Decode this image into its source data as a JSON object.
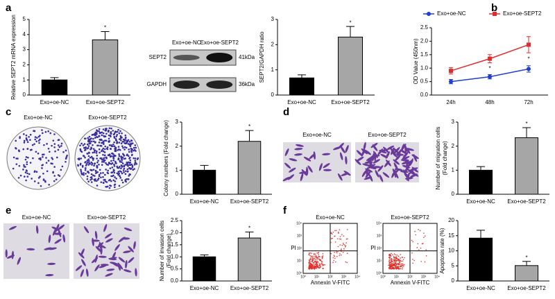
{
  "panel_labels": [
    "a",
    "b",
    "c",
    "d",
    "e",
    "f"
  ],
  "blot": {
    "lanes": [
      "Exo+oe-NC",
      "Exo+oe-SEPT2"
    ],
    "rows": [
      {
        "name": "SEPT2",
        "size": "41kDa"
      },
      {
        "name": "GAPDH",
        "size": "36kDa"
      }
    ]
  },
  "micrographs": [
    {
      "labels": [
        "Exo+oe-NC",
        "Exo+oe-SEPT2"
      ]
    },
    {
      "labels": [
        "Exo+oe-NC",
        "Exo+oe-SEPT2"
      ]
    },
    {
      "labels": [
        "Exo+oe-NC",
        "Exo+oe-SEPT2"
      ]
    }
  ],
  "flow": {
    "labels": [
      "Exo+oe-NC",
      "Exo+oe-SEPT2"
    ],
    "xlabel": "Annexin V-FITC",
    "ylabel": "PI",
    "ticks": [
      "10⁰",
      "10¹",
      "10²",
      "10³",
      "10⁴"
    ]
  },
  "chart_data": [
    {
      "type": "bar",
      "ylabel": "Relative SEPT2 mRNA expression",
      "categories": [
        "Exo+oe-NC",
        "Exo+oe-SEPT2"
      ],
      "values": [
        1.0,
        3.65
      ],
      "errors": [
        0.15,
        0.55
      ],
      "colors": [
        "#000000",
        "#a6a6a6"
      ],
      "ylim": [
        0,
        5
      ],
      "yticks": [
        0,
        1,
        2,
        3,
        4,
        5
      ],
      "annotation": "*"
    },
    {
      "type": "bar",
      "ylabel": "SEPT2/GAPDH ratio",
      "categories": [
        "Exo+oe-NC",
        "Exo+oe-SEPT2"
      ],
      "values": [
        0.68,
        2.3
      ],
      "errors": [
        0.12,
        0.42
      ],
      "colors": [
        "#000000",
        "#a6a6a6"
      ],
      "ylim": [
        0,
        3
      ],
      "yticks": [
        0,
        1,
        2,
        3
      ],
      "annotation": "*"
    },
    {
      "type": "line",
      "ylabel": "OD Value (450nm)",
      "categories": [
        "24h",
        "48h",
        "72h"
      ],
      "series": [
        {
          "name": "Exo+oe-NC",
          "color": "#1f3fcf",
          "values": [
            0.5,
            0.68,
            0.97
          ],
          "errors": [
            0.08,
            0.08,
            0.12
          ]
        },
        {
          "name": "Exo+oe-SEPT2",
          "color": "#e32b2b",
          "values": [
            0.9,
            1.35,
            1.87
          ],
          "errors": [
            0.12,
            0.15,
            0.3
          ]
        }
      ],
      "ylim": [
        0,
        2.5
      ],
      "yticks": [
        {
          "value": 0,
          "label": "0.0"
        },
        0.5,
        {
          "value": 1,
          "label": "1.0"
        },
        1.5,
        {
          "value": 2,
          "label": "2.0"
        },
        2.5
      ],
      "annotations": [
        {
          "index": 1,
          "text": "*"
        },
        {
          "index": 2,
          "text": "*"
        }
      ]
    },
    {
      "type": "bar",
      "ylabel": "Colony numbers (Fold change)",
      "categories": [
        "Exo+oe-NC",
        "Exo+oe-SEPT2"
      ],
      "values": [
        1.0,
        2.2
      ],
      "errors": [
        0.2,
        0.45
      ],
      "colors": [
        "#000000",
        "#a6a6a6"
      ],
      "ylim": [
        0,
        3
      ],
      "yticks": [
        0,
        1,
        2,
        3
      ],
      "annotation": "*"
    },
    {
      "type": "bar",
      "ylabel": "Number of migration cells (Fold change)",
      "categories": [
        "Exo+oe-NC",
        "Exo+oe-SEPT2"
      ],
      "values": [
        1.0,
        2.35
      ],
      "errors": [
        0.15,
        0.42
      ],
      "colors": [
        "#000000",
        "#a6a6a6"
      ],
      "ylim": [
        0,
        3
      ],
      "yticks": [
        0,
        1,
        2,
        3
      ],
      "annotation": "*"
    },
    {
      "type": "bar",
      "ylabel": "Number of invasion cells (Fold change)",
      "categories": [
        "Exo+oe-NC",
        "Exo+oe-SEPT2"
      ],
      "values": [
        1.0,
        1.78
      ],
      "errors": [
        0.08,
        0.25
      ],
      "colors": [
        "#000000",
        "#a6a6a6"
      ],
      "ylim": [
        0,
        2.5
      ],
      "yticks": [
        {
          "value": 0,
          "label": "0.0"
        },
        0.5,
        {
          "value": 1,
          "label": "1.0"
        },
        1.5,
        {
          "value": 2,
          "label": "2.0"
        },
        2.5
      ],
      "annotation": "*"
    },
    {
      "type": "bar",
      "ylabel": "Apoptosis rate (%)",
      "categories": [
        "Exo+oe-NC",
        "Exo+oe-SEPT2"
      ],
      "values": [
        14.2,
        5.1
      ],
      "errors": [
        2.6,
        1.4
      ],
      "colors": [
        "#000000",
        "#a6a6a6"
      ],
      "ylim": [
        0,
        20
      ],
      "yticks": [
        0,
        5,
        10,
        15,
        20
      ],
      "annotation": "*"
    }
  ]
}
